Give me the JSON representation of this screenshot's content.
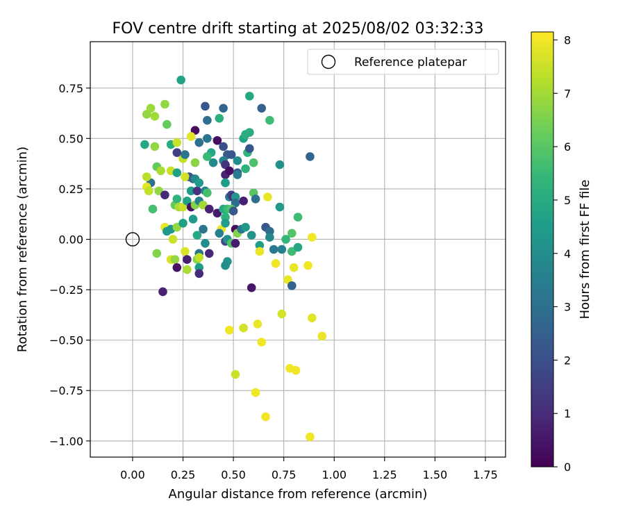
{
  "chart_data": {
    "type": "scatter",
    "title": "FOV centre drift starting at 2025/08/02 03:32:33",
    "xlabel": "Angular distance from reference (arcmin)",
    "ylabel": "Rotation from reference (arcmin)",
    "xlim": [
      -0.21,
      1.85
    ],
    "ylim": [
      -1.08,
      0.98
    ],
    "xticks": [
      0.0,
      0.25,
      0.5,
      0.75,
      1.0,
      1.25,
      1.5,
      1.75
    ],
    "xtick_labels": [
      "0.00",
      "0.25",
      "0.50",
      "0.75",
      "1.00",
      "1.25",
      "1.50",
      "1.75"
    ],
    "yticks": [
      -1.0,
      -0.75,
      -0.5,
      -0.25,
      0.0,
      0.25,
      0.5,
      0.75
    ],
    "ytick_labels": [
      "−1.00",
      "−0.75",
      "−0.50",
      "−0.25",
      "0.00",
      "0.25",
      "0.50",
      "0.75"
    ],
    "grid": true,
    "legend": {
      "position": "top-right",
      "entries": [
        {
          "label": "Reference platepar",
          "marker": "open-circle"
        }
      ]
    },
    "reference_point": {
      "x": 0.0,
      "y": 0.0
    },
    "colorbar": {
      "label": "Hours from first FF file",
      "colormap": "viridis",
      "min": 0,
      "max": 8.15,
      "ticks": [
        0,
        1,
        2,
        3,
        4,
        5,
        6,
        7,
        8
      ],
      "tick_labels": [
        "0",
        "1",
        "2",
        "3",
        "4",
        "5",
        "6",
        "7",
        "8"
      ],
      "stops": [
        "#440154",
        "#482878",
        "#3e4989",
        "#31688e",
        "#26828e",
        "#1f9e89",
        "#35b779",
        "#6ece58",
        "#b5de2b",
        "#fde725"
      ]
    },
    "points": [
      {
        "x": 0.31,
        "y": 0.54,
        "h": 0.3
      },
      {
        "x": 0.58,
        "y": 0.53,
        "h": 5.0
      },
      {
        "x": 0.24,
        "y": 0.79,
        "h": 4.7
      },
      {
        "x": 0.58,
        "y": 0.71,
        "h": 4.9
      },
      {
        "x": 0.36,
        "y": 0.66,
        "h": 2.2
      },
      {
        "x": 0.45,
        "y": 0.65,
        "h": 2.7
      },
      {
        "x": 0.64,
        "y": 0.65,
        "h": 2.5
      },
      {
        "x": 0.16,
        "y": 0.67,
        "h": 6.8
      },
      {
        "x": 0.07,
        "y": 0.62,
        "h": 6.8
      },
      {
        "x": 0.09,
        "y": 0.65,
        "h": 6.9
      },
      {
        "x": 0.11,
        "y": 0.61,
        "h": 7.0
      },
      {
        "x": 0.17,
        "y": 0.57,
        "h": 6.2
      },
      {
        "x": 0.37,
        "y": 0.59,
        "h": 3.0
      },
      {
        "x": 0.43,
        "y": 0.6,
        "h": 5.1
      },
      {
        "x": 0.68,
        "y": 0.59,
        "h": 5.6
      },
      {
        "x": 0.29,
        "y": 0.51,
        "h": 7.8
      },
      {
        "x": 0.06,
        "y": 0.47,
        "h": 4.8
      },
      {
        "x": 0.11,
        "y": 0.46,
        "h": 6.8
      },
      {
        "x": 0.19,
        "y": 0.47,
        "h": 5.0
      },
      {
        "x": 0.22,
        "y": 0.48,
        "h": 7.5
      },
      {
        "x": 0.37,
        "y": 0.5,
        "h": 3.2
      },
      {
        "x": 0.42,
        "y": 0.49,
        "h": 0.3
      },
      {
        "x": 0.45,
        "y": 0.46,
        "h": 2.0
      },
      {
        "x": 0.55,
        "y": 0.5,
        "h": 4.7
      },
      {
        "x": 0.56,
        "y": 0.52,
        "h": 5.1
      },
      {
        "x": 0.57,
        "y": 0.43,
        "h": 5.3
      },
      {
        "x": 0.58,
        "y": 0.45,
        "h": 2.2
      },
      {
        "x": 0.22,
        "y": 0.43,
        "h": 1.5
      },
      {
        "x": 0.25,
        "y": 0.4,
        "h": 7.4
      },
      {
        "x": 0.26,
        "y": 0.42,
        "h": 3.2
      },
      {
        "x": 0.33,
        "y": 0.48,
        "h": 3.0
      },
      {
        "x": 0.39,
        "y": 0.43,
        "h": 4.8
      },
      {
        "x": 0.4,
        "y": 0.38,
        "h": 3.9
      },
      {
        "x": 0.47,
        "y": 0.42,
        "h": 2.4
      },
      {
        "x": 0.49,
        "y": 0.42,
        "h": 2.2
      },
      {
        "x": 0.52,
        "y": 0.39,
        "h": 3.9
      },
      {
        "x": 0.45,
        "y": 0.39,
        "h": 3.6
      },
      {
        "x": 0.46,
        "y": 0.37,
        "h": 1.2
      },
      {
        "x": 0.09,
        "y": 0.28,
        "h": 3.0
      },
      {
        "x": 0.12,
        "y": 0.36,
        "h": 6.2
      },
      {
        "x": 0.14,
        "y": 0.34,
        "h": 7.1
      },
      {
        "x": 0.19,
        "y": 0.34,
        "h": 7.5
      },
      {
        "x": 0.22,
        "y": 0.33,
        "h": 4.6
      },
      {
        "x": 0.28,
        "y": 0.31,
        "h": 2.0
      },
      {
        "x": 0.31,
        "y": 0.38,
        "h": 6.7
      },
      {
        "x": 0.37,
        "y": 0.41,
        "h": 5.5
      },
      {
        "x": 0.46,
        "y": 0.32,
        "h": 0.8
      },
      {
        "x": 0.48,
        "y": 0.34,
        "h": 0.3
      },
      {
        "x": 0.52,
        "y": 0.33,
        "h": 2.2
      },
      {
        "x": 0.52,
        "y": 0.32,
        "h": 3.4
      },
      {
        "x": 0.56,
        "y": 0.35,
        "h": 5.2
      },
      {
        "x": 0.6,
        "y": 0.38,
        "h": 5.8
      },
      {
        "x": 0.73,
        "y": 0.37,
        "h": 4.1
      },
      {
        "x": 0.88,
        "y": 0.41,
        "h": 2.6
      },
      {
        "x": 0.07,
        "y": 0.31,
        "h": 7.3
      },
      {
        "x": 0.07,
        "y": 0.26,
        "h": 7.8
      },
      {
        "x": 0.08,
        "y": 0.24,
        "h": 7.4
      },
      {
        "x": 0.13,
        "y": 0.24,
        "h": 6.8
      },
      {
        "x": 0.16,
        "y": 0.22,
        "h": 1.0
      },
      {
        "x": 0.26,
        "y": 0.31,
        "h": 7.6
      },
      {
        "x": 0.29,
        "y": 0.24,
        "h": 4.5
      },
      {
        "x": 0.3,
        "y": 0.3,
        "h": 2.3
      },
      {
        "x": 0.31,
        "y": 0.3,
        "h": 3.9
      },
      {
        "x": 0.32,
        "y": 0.24,
        "h": 1.2
      },
      {
        "x": 0.33,
        "y": 0.28,
        "h": 4.4
      },
      {
        "x": 0.36,
        "y": 0.24,
        "h": 3.5
      },
      {
        "x": 0.37,
        "y": 0.23,
        "h": 5.7
      },
      {
        "x": 0.46,
        "y": 0.28,
        "h": 5.0
      },
      {
        "x": 0.46,
        "y": 0.28,
        "h": 4.5
      },
      {
        "x": 0.48,
        "y": 0.21,
        "h": 3.5
      },
      {
        "x": 0.49,
        "y": 0.22,
        "h": 1.7
      },
      {
        "x": 0.5,
        "y": 0.21,
        "h": 0.9
      },
      {
        "x": 0.51,
        "y": 0.21,
        "h": 4.2
      },
      {
        "x": 0.51,
        "y": 0.18,
        "h": 2.9
      },
      {
        "x": 0.55,
        "y": 0.19,
        "h": 0.7
      },
      {
        "x": 0.6,
        "y": 0.23,
        "h": 6.0
      },
      {
        "x": 0.61,
        "y": 0.2,
        "h": 3.0
      },
      {
        "x": 0.67,
        "y": 0.21,
        "h": 7.9
      },
      {
        "x": 0.1,
        "y": 0.15,
        "h": 5.7
      },
      {
        "x": 0.21,
        "y": 0.17,
        "h": 6.2
      },
      {
        "x": 0.22,
        "y": 0.2,
        "h": 5.3
      },
      {
        "x": 0.23,
        "y": 0.16,
        "h": 7.1
      },
      {
        "x": 0.25,
        "y": 0.16,
        "h": 7.5
      },
      {
        "x": 0.27,
        "y": 0.19,
        "h": 4.7
      },
      {
        "x": 0.29,
        "y": 0.16,
        "h": 0.4
      },
      {
        "x": 0.31,
        "y": 0.17,
        "h": 6.6
      },
      {
        "x": 0.33,
        "y": 0.19,
        "h": 3.5
      },
      {
        "x": 0.35,
        "y": 0.17,
        "h": 7.0
      },
      {
        "x": 0.38,
        "y": 0.15,
        "h": 0.8
      },
      {
        "x": 0.42,
        "y": 0.13,
        "h": 0.6
      },
      {
        "x": 0.45,
        "y": 0.15,
        "h": 4.9
      },
      {
        "x": 0.46,
        "y": 0.11,
        "h": 5.2
      },
      {
        "x": 0.47,
        "y": 0.15,
        "h": 5.5
      },
      {
        "x": 0.49,
        "y": 0.15,
        "h": 6.0
      },
      {
        "x": 0.5,
        "y": 0.14,
        "h": 2.3
      },
      {
        "x": 0.73,
        "y": 0.16,
        "h": 4.4
      },
      {
        "x": 0.82,
        "y": 0.11,
        "h": 5.6
      },
      {
        "x": 0.16,
        "y": 0.06,
        "h": 7.9
      },
      {
        "x": 0.17,
        "y": 0.04,
        "h": 4.4
      },
      {
        "x": 0.19,
        "y": 0.05,
        "h": 4.3
      },
      {
        "x": 0.22,
        "y": 0.06,
        "h": 6.8
      },
      {
        "x": 0.25,
        "y": 0.08,
        "h": 4.6
      },
      {
        "x": 0.3,
        "y": 0.1,
        "h": 4.4
      },
      {
        "x": 0.35,
        "y": 0.05,
        "h": 3.2
      },
      {
        "x": 0.44,
        "y": 0.05,
        "h": 7.9
      },
      {
        "x": 0.46,
        "y": 0.08,
        "h": 4.5
      },
      {
        "x": 0.51,
        "y": 0.05,
        "h": 0.3
      },
      {
        "x": 0.52,
        "y": 0.03,
        "h": 6.6
      },
      {
        "x": 0.54,
        "y": 0.05,
        "h": 3.2
      },
      {
        "x": 0.56,
        "y": 0.06,
        "h": 4.3
      },
      {
        "x": 0.66,
        "y": 0.06,
        "h": 2.2
      },
      {
        "x": 0.68,
        "y": 0.04,
        "h": 2.9
      },
      {
        "x": 0.68,
        "y": 0.01,
        "h": 3.8
      },
      {
        "x": 0.76,
        "y": 0.0,
        "h": 5.4
      },
      {
        "x": 0.79,
        "y": 0.03,
        "h": 5.9
      },
      {
        "x": 0.89,
        "y": 0.01,
        "h": 8.0
      },
      {
        "x": 0.2,
        "y": 0.0,
        "h": 7.5
      },
      {
        "x": 0.32,
        "y": 0.02,
        "h": 4.9
      },
      {
        "x": 0.43,
        "y": 0.03,
        "h": 3.6
      },
      {
        "x": 0.46,
        "y": -0.01,
        "h": 1.8
      },
      {
        "x": 0.47,
        "y": 0.0,
        "h": 4.0
      },
      {
        "x": 0.49,
        "y": -0.02,
        "h": 5.9
      },
      {
        "x": 0.51,
        "y": -0.02,
        "h": 0.6
      },
      {
        "x": 0.59,
        "y": 0.02,
        "h": 4.2
      },
      {
        "x": 0.63,
        "y": -0.03,
        "h": 4.5
      },
      {
        "x": 0.7,
        "y": -0.05,
        "h": 3.3
      },
      {
        "x": 0.74,
        "y": -0.05,
        "h": 3.6
      },
      {
        "x": 0.79,
        "y": -0.06,
        "h": 5.6
      },
      {
        "x": 0.82,
        "y": -0.04,
        "h": 4.8
      },
      {
        "x": 0.12,
        "y": -0.07,
        "h": 6.6
      },
      {
        "x": 0.26,
        "y": -0.06,
        "h": 7.7
      },
      {
        "x": 0.33,
        "y": -0.07,
        "h": 3.1
      },
      {
        "x": 0.38,
        "y": -0.07,
        "h": 0.9
      },
      {
        "x": 0.36,
        "y": -0.02,
        "h": 4.0
      },
      {
        "x": 0.19,
        "y": -0.1,
        "h": 7.7
      },
      {
        "x": 0.21,
        "y": -0.1,
        "h": 6.8
      },
      {
        "x": 0.27,
        "y": -0.1,
        "h": 0.7
      },
      {
        "x": 0.32,
        "y": -0.1,
        "h": 6.6
      },
      {
        "x": 0.33,
        "y": -0.09,
        "h": 7.4
      },
      {
        "x": 0.47,
        "y": -0.11,
        "h": 4.2
      },
      {
        "x": 0.63,
        "y": -0.06,
        "h": 7.9
      },
      {
        "x": 0.71,
        "y": -0.12,
        "h": 8.0
      },
      {
        "x": 0.22,
        "y": -0.14,
        "h": 0.4
      },
      {
        "x": 0.27,
        "y": -0.15,
        "h": 7.1
      },
      {
        "x": 0.33,
        "y": -0.14,
        "h": 4.5
      },
      {
        "x": 0.33,
        "y": -0.17,
        "h": 1.0
      },
      {
        "x": 0.46,
        "y": -0.13,
        "h": 4.0
      },
      {
        "x": 0.8,
        "y": -0.14,
        "h": 7.9
      },
      {
        "x": 0.87,
        "y": -0.13,
        "h": 8.0
      },
      {
        "x": 0.77,
        "y": -0.2,
        "h": 7.9
      },
      {
        "x": 0.79,
        "y": -0.23,
        "h": 2.6
      },
      {
        "x": 0.59,
        "y": -0.24,
        "h": 0.5
      },
      {
        "x": 0.15,
        "y": -0.26,
        "h": 0.8
      },
      {
        "x": 0.74,
        "y": -0.37,
        "h": 7.6
      },
      {
        "x": 0.89,
        "y": -0.39,
        "h": 7.8
      },
      {
        "x": 0.62,
        "y": -0.42,
        "h": 7.9
      },
      {
        "x": 0.55,
        "y": -0.44,
        "h": 7.6
      },
      {
        "x": 0.48,
        "y": -0.45,
        "h": 8.0
      },
      {
        "x": 0.94,
        "y": -0.48,
        "h": 7.9
      },
      {
        "x": 0.64,
        "y": -0.51,
        "h": 8.0
      },
      {
        "x": 0.51,
        "y": -0.67,
        "h": 7.5
      },
      {
        "x": 0.78,
        "y": -0.64,
        "h": 8.0
      },
      {
        "x": 0.81,
        "y": -0.65,
        "h": 8.0
      },
      {
        "x": 0.61,
        "y": -0.76,
        "h": 8.0
      },
      {
        "x": 0.66,
        "y": -0.88,
        "h": 8.0
      },
      {
        "x": 0.88,
        "y": -0.98,
        "h": 8.0
      }
    ]
  }
}
